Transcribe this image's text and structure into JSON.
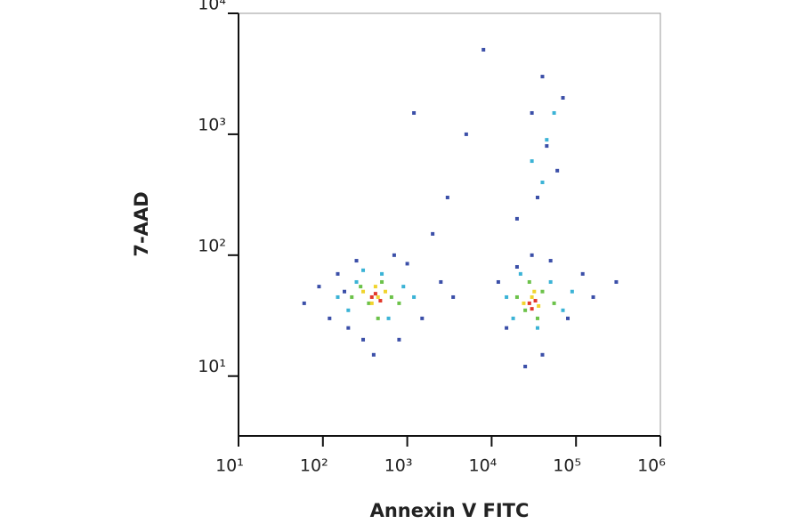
{
  "chart_data": {
    "type": "scatter",
    "xlabel": "Annexin V FITC",
    "ylabel": "7-AAD",
    "xscale": "log",
    "yscale": "log",
    "xlim": [
      10,
      1000000
    ],
    "ylim": [
      3.2,
      10000
    ],
    "xticks": [
      {
        "value": 10,
        "label": "10¹"
      },
      {
        "value": 100,
        "label": "10²"
      },
      {
        "value": 1000,
        "label": "10³"
      },
      {
        "value": 10000,
        "label": "10⁴"
      },
      {
        "value": 100000,
        "label": "10⁵"
      },
      {
        "value": 1000000,
        "label": "10⁶"
      }
    ],
    "yticks": [
      {
        "value": 10,
        "label": "10¹"
      },
      {
        "value": 100,
        "label": "10²"
      },
      {
        "value": 1000,
        "label": "10³"
      },
      {
        "value": 10000,
        "label": "10⁴"
      }
    ],
    "series": [
      {
        "color": "#3b4fa8",
        "x": [
          60,
          90,
          120,
          150,
          200,
          250,
          300,
          800,
          1500,
          2500,
          3500,
          700,
          1000,
          400,
          180,
          12000,
          15000,
          20000,
          50000,
          80000,
          120000,
          160000,
          300000,
          25000,
          40000,
          35000,
          60000,
          30000,
          45000,
          70000,
          2000,
          3000,
          5000,
          8000,
          1200,
          20000,
          30000,
          40000
        ],
        "values": [
          40,
          55,
          30,
          70,
          25,
          90,
          20,
          20,
          30,
          60,
          45,
          100,
          85,
          15,
          50,
          60,
          25,
          80,
          90,
          30,
          70,
          45,
          60,
          12,
          15,
          300,
          500,
          1500,
          800,
          2000,
          150,
          300,
          1000,
          5000,
          1500,
          200,
          100,
          3000
        ]
      },
      {
        "color": "#3bb3d6",
        "x": [
          150,
          200,
          250,
          600,
          900,
          1200,
          300,
          500,
          15000,
          18000,
          50000,
          70000,
          90000,
          22000,
          35000,
          30000,
          45000,
          55000,
          40000
        ],
        "values": [
          45,
          35,
          60,
          30,
          55,
          45,
          75,
          70,
          45,
          30,
          60,
          35,
          50,
          70,
          25,
          600,
          900,
          1500,
          400
        ]
      },
      {
        "color": "#6cc24a",
        "x": [
          220,
          280,
          350,
          500,
          650,
          800,
          450,
          20000,
          25000,
          40000,
          55000,
          28000,
          35000
        ],
        "values": [
          45,
          55,
          40,
          60,
          45,
          40,
          30,
          45,
          35,
          50,
          40,
          60,
          30
        ]
      },
      {
        "color": "#f0d42e",
        "x": [
          300,
          380,
          450,
          550,
          420,
          24000,
          30000,
          36000,
          32000
        ],
        "values": [
          50,
          40,
          45,
          50,
          55,
          40,
          45,
          38,
          50
        ]
      },
      {
        "color": "#e2392b",
        "x": [
          380,
          480,
          420,
          28000,
          33000,
          30000
        ],
        "values": [
          45,
          42,
          48,
          40,
          42,
          36
        ]
      }
    ]
  }
}
